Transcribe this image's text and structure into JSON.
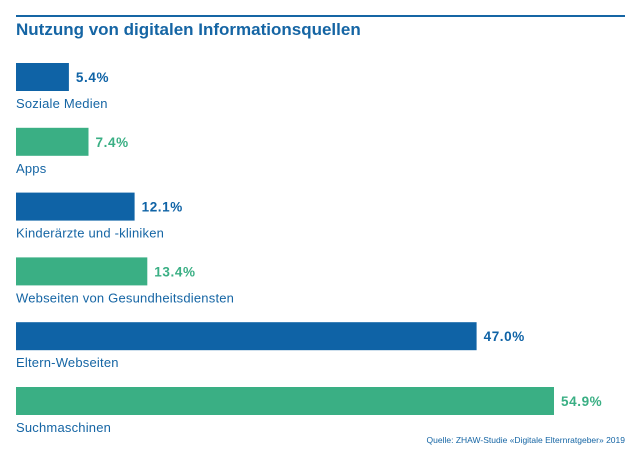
{
  "chart_data": {
    "type": "bar",
    "orientation": "horizontal",
    "title": "Nutzung von digitalen Informationsquellen",
    "categories": [
      "Soziale Medien",
      "Apps",
      "Kinderärzte und -kliniken",
      "Webseiten von Gesundheitsdiensten",
      "Eltern-Webseiten",
      "Suchmaschinen"
    ],
    "values": [
      5.4,
      7.4,
      12.1,
      13.4,
      47.0,
      54.9
    ],
    "value_labels": [
      "5.4%",
      "7.4%",
      "12.1%",
      "13.4%",
      "47.0%",
      "54.9%"
    ],
    "colors": [
      "#0f63a6",
      "#3aaf84",
      "#0f63a6",
      "#3aaf84",
      "#0f63a6",
      "#3aaf84"
    ],
    "xlim": [
      0,
      100
    ],
    "xlabel": "",
    "ylabel": "",
    "grid": false,
    "legend": "none"
  },
  "source": "Quelle: ZHAW-Studie «Digitale Elternratgeber» 2019",
  "colors": {
    "accent": "#1565a4",
    "blue_bar": "#0f63a6",
    "green_bar": "#3aaf84"
  }
}
